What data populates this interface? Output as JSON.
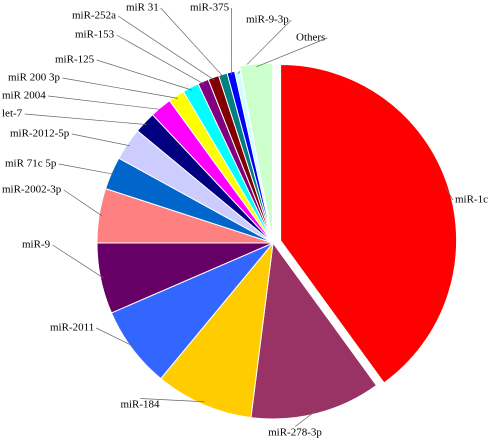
{
  "chart_data": {
    "type": "pie",
    "categories": [
      "miR-1c",
      "miR-278-3p",
      "miR-184",
      "miR-2011",
      "miR-9",
      "miR-2002-3p",
      "miR 71c 5p",
      "miR-2012-5p",
      "let-7",
      "miR 2004",
      "miR 200 3p",
      "miR-125",
      "miR-153",
      "miR-252a",
      "miR 31",
      "miR-375",
      "miR-9-3p",
      "Others"
    ],
    "values": [
      40,
      12,
      9,
      7.5,
      6.5,
      5,
      3,
      3,
      2,
      2,
      1.5,
      1.5,
      1,
      1,
      0.8,
      0.7,
      0.5,
      3
    ],
    "colors": [
      "#ff0000",
      "#993366",
      "#ffcc00",
      "#3366ff",
      "#660066",
      "#ff8080",
      "#0066cc",
      "#ccccff",
      "#000080",
      "#ff00ff",
      "#ffff00",
      "#00ffff",
      "#800080",
      "#800000",
      "#008080",
      "#0000ff",
      "#ccffff",
      "#ccffcc"
    ]
  }
}
